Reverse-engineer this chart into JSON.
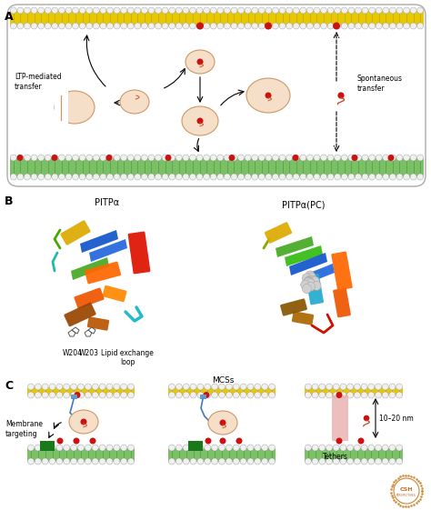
{
  "fig_width": 4.74,
  "fig_height": 5.61,
  "dpi": 100,
  "bg_color": "#ffffff",
  "panel_label_fontsize": 9,
  "membrane_yellow": "#e8c800",
  "membrane_yellow_light": "#f5e060",
  "membrane_green": "#7ac065",
  "membrane_green_dark": "#5a9848",
  "lipid_head_color": "#f0f0f0",
  "red_dot_color": "#cc1111",
  "vesicle_fill": "#f5dfc8",
  "vesicle_outline": "#cc9966",
  "ltp_text": "LTP-mediated\ntransfer",
  "spontaneous_text": "Spontaneous\ntransfer",
  "pitpa_text": "PITPα",
  "pitpa_pc_text": "PITPα(PC)",
  "w204_text": "W204",
  "w203_text": "W203",
  "lipid_loop_text": "Lipid exchange\nloop",
  "membrane_target_text": "Membrane\ntargeting",
  "mcss_text": "MCSs",
  "tethers_text": "Tethers",
  "nm_text": "10–20 nm",
  "green_box_color": "#1a7a1a",
  "tether_color": "#e8a8a8",
  "blue_line_color": "#4477bb",
  "cell_border_color": "#aaaaaa"
}
